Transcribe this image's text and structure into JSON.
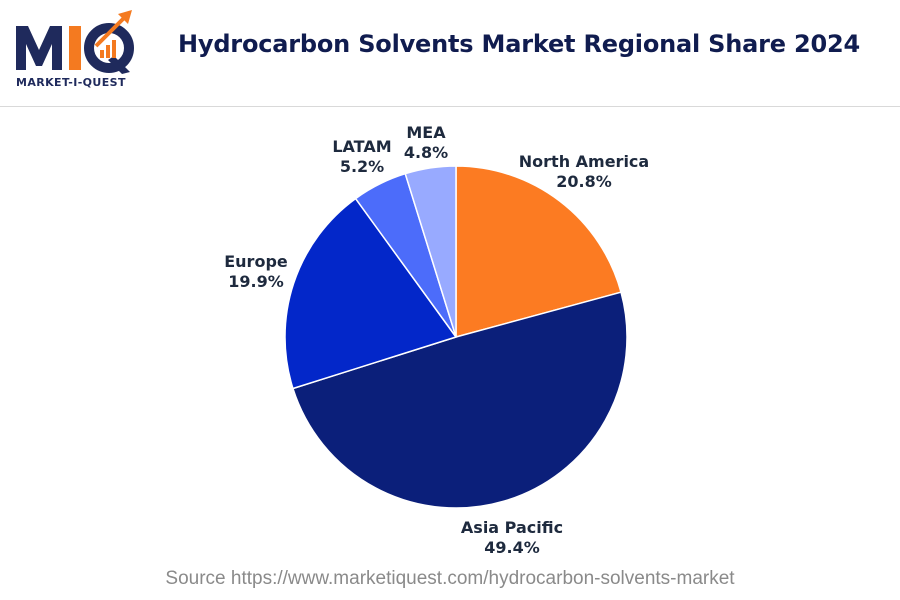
{
  "brand": {
    "logo_text": "MIQ",
    "logo_subtitle": "MARKET-I-QUEST",
    "primary_color": "#1f2a5c",
    "accent_color": "#f47a20"
  },
  "header": {
    "title": "Hydrocarbon Solvents Market Regional Share 2024"
  },
  "chart_data": {
    "type": "pie",
    "title": "Hydrocarbon Solvents Market Regional Share 2024",
    "start": "12 o'clock",
    "direction": "clockwise",
    "slices": [
      {
        "label": "North America",
        "value": 20.8,
        "display": "20.8%",
        "color": "#fc7b22"
      },
      {
        "label": "Asia Pacific",
        "value": 49.4,
        "display": "49.4%",
        "color": "#0b1f7a"
      },
      {
        "label": "Europe",
        "value": 19.9,
        "display": "19.9%",
        "color": "#0327c9"
      },
      {
        "label": "LATAM",
        "value": 5.2,
        "display": "5.2%",
        "color": "#4c6cfa"
      },
      {
        "label": "MEA",
        "value": 4.8,
        "display": "4.8%",
        "color": "#98aaff"
      }
    ]
  },
  "footer": {
    "source": "Source https://www.marketiquest.com/hydrocarbon-solvents-market"
  }
}
